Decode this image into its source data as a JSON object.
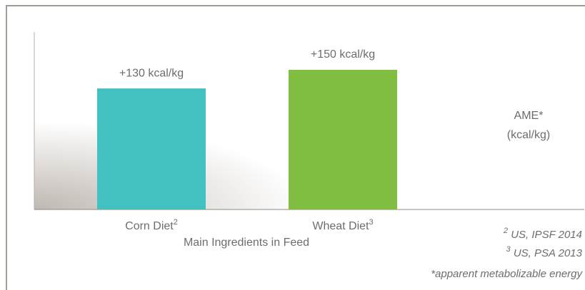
{
  "chart_data": {
    "type": "bar",
    "categories": [
      "Corn Diet",
      "Wheat Diet"
    ],
    "category_superscripts": [
      "2",
      "3"
    ],
    "values": [
      130,
      150
    ],
    "value_labels": [
      "+130 kcal/kg",
      "+150 kcal/kg"
    ],
    "colors": [
      "#43c1c0",
      "#80bd41"
    ],
    "x_label": "Main Ingredients in Feed",
    "y_label": [
      "AME*",
      "(kcal/kg)"
    ],
    "footnotes": [
      {
        "mark": "2",
        "text": "US, IPSF 2014"
      },
      {
        "mark": "3",
        "text": "US, PSA 2013"
      }
    ],
    "note": "*apparent metabolizable energy"
  }
}
